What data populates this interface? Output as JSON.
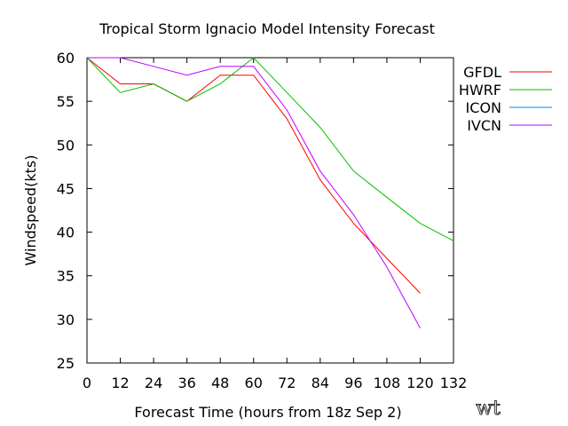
{
  "chart_data": {
    "type": "line",
    "title": "Tropical Storm Ignacio Model Intensity Forecast",
    "xlabel": "Forecast Time  (hours from 18z Sep 2)",
    "ylabel": "Windspeed(kts)",
    "xlim": [
      0,
      132
    ],
    "ylim": [
      25,
      60
    ],
    "xticks": [
      0,
      12,
      24,
      36,
      48,
      60,
      72,
      84,
      96,
      108,
      120,
      132
    ],
    "yticks": [
      25,
      30,
      35,
      40,
      45,
      50,
      55,
      60
    ],
    "grid": false,
    "legend_position": "top-right",
    "series": [
      {
        "name": "GFDL",
        "color": "#ff0000",
        "x": [
          0,
          12,
          24,
          36,
          48,
          60,
          72,
          84,
          96,
          108,
          120
        ],
        "values": [
          60,
          57,
          57,
          55,
          58,
          58,
          53,
          46,
          41,
          37,
          33
        ]
      },
      {
        "name": "HWRF",
        "color": "#00c000",
        "x": [
          0,
          12,
          24,
          36,
          48,
          60,
          72,
          84,
          96,
          108,
          120,
          132
        ],
        "values": [
          60,
          56,
          57,
          55,
          57,
          60,
          56,
          52,
          47,
          44,
          41,
          39
        ]
      },
      {
        "name": "ICON",
        "color": "#0080ff",
        "x": [],
        "values": []
      },
      {
        "name": "IVCN",
        "color": "#c000ff",
        "x": [
          0,
          12,
          24,
          36,
          48,
          60,
          72,
          84,
          96,
          108,
          120
        ],
        "values": [
          60,
          60,
          59,
          58,
          59,
          59,
          54,
          47,
          42,
          36,
          29
        ]
      }
    ]
  },
  "watermark": "wt"
}
